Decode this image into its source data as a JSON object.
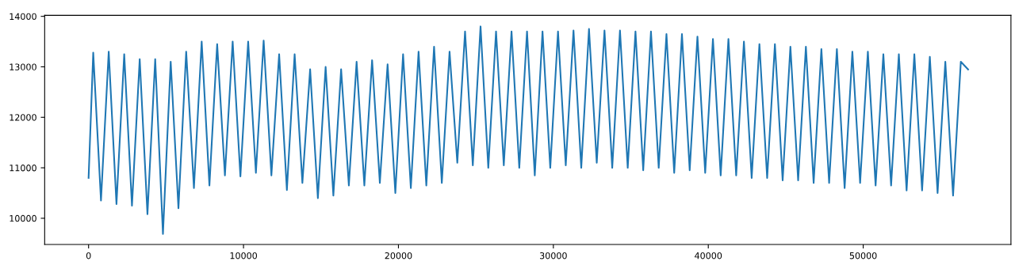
{
  "chart_data": {
    "type": "line",
    "x": [
      0,
      300,
      800,
      1300,
      1800,
      2300,
      2800,
      3300,
      3800,
      4300,
      4800,
      5300,
      5800,
      6300,
      6800,
      7300,
      7800,
      8300,
      8800,
      9300,
      9800,
      10300,
      10800,
      11300,
      11800,
      12300,
      12800,
      13300,
      13800,
      14300,
      14800,
      15300,
      15800,
      16300,
      16800,
      17300,
      17800,
      18300,
      18800,
      19300,
      19800,
      20300,
      20800,
      21300,
      21800,
      22300,
      22800,
      23300,
      23800,
      24300,
      24800,
      25300,
      25800,
      26300,
      26800,
      27300,
      27800,
      28300,
      28800,
      29300,
      29800,
      30300,
      30800,
      31300,
      31800,
      32300,
      32800,
      33300,
      33800,
      34300,
      34800,
      35300,
      35800,
      36300,
      36800,
      37300,
      37800,
      38300,
      38800,
      39300,
      39800,
      40300,
      40800,
      41300,
      41800,
      42300,
      42800,
      43300,
      43800,
      44300,
      44800,
      45300,
      45800,
      46300,
      46800,
      47300,
      47800,
      48300,
      48800,
      49300,
      49800,
      50300,
      50800,
      51300,
      51800,
      52300,
      52800,
      53300,
      53800,
      54300,
      54800,
      55300,
      55800,
      56300,
      56770
    ],
    "series": [
      {
        "color": "#1f77b4",
        "values": [
          10800,
          13280,
          10350,
          13300,
          10280,
          13250,
          10250,
          13150,
          10080,
          13150,
          9690,
          13100,
          10200,
          13300,
          10600,
          13500,
          10650,
          13450,
          10850,
          13500,
          10830,
          13500,
          10900,
          13520,
          10850,
          13250,
          10560,
          13250,
          10700,
          12950,
          10400,
          13000,
          10450,
          12950,
          10650,
          13100,
          10650,
          13130,
          10700,
          13050,
          10500,
          13250,
          10600,
          13300,
          10650,
          13400,
          10700,
          13300,
          11100,
          13700,
          11050,
          13800,
          11000,
          13700,
          11050,
          13700,
          11000,
          13700,
          10850,
          13700,
          11000,
          13700,
          11050,
          13720,
          11000,
          13750,
          11100,
          13720,
          11000,
          13720,
          11000,
          13700,
          10950,
          13700,
          11000,
          13650,
          10900,
          13650,
          10950,
          13600,
          10900,
          13550,
          10850,
          13550,
          10850,
          13500,
          10800,
          13450,
          10800,
          13450,
          10750,
          13400,
          10750,
          13400,
          10700,
          13350,
          10700,
          13350,
          10600,
          13300,
          10700,
          13300,
          10650,
          13250,
          10650,
          13250,
          10550,
          13250,
          10550,
          13200,
          10500,
          13100,
          10450,
          13100,
          12950
        ]
      }
    ],
    "xlim": [
      -2835,
      59535
    ],
    "xticks": [
      0,
      10000,
      20000,
      30000,
      40000,
      50000
    ],
    "ylim": [
      9480,
      14020
    ],
    "yticks": [
      10000,
      11000,
      12000,
      13000,
      14000
    ],
    "grid": false,
    "legend": false
  }
}
